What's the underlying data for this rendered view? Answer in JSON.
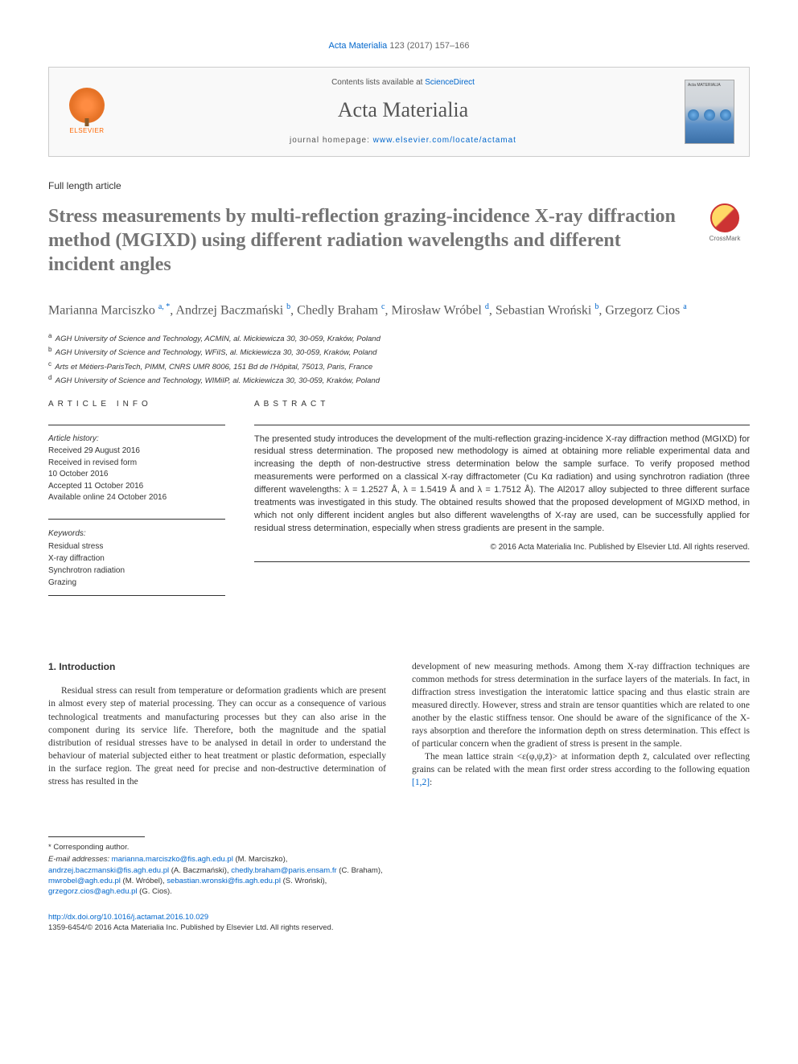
{
  "citation": {
    "journal_link": "Acta Materialia",
    "ref": " 123 (2017) 157–166"
  },
  "journal_box": {
    "elsevier_label": "ELSEVIER",
    "contents_prefix": "Contents lists available at ",
    "contents_link": "ScienceDirect",
    "journal_name": "Acta Materialia",
    "homepage_prefix": "journal homepage: ",
    "homepage_link": "www.elsevier.com/locate/actamat",
    "cover_text": "Acta MATERIALIA"
  },
  "article_type": "Full length article",
  "crossmark_label": "CrossMark",
  "title": "Stress measurements by multi-reflection grazing-incidence X-ray diffraction method (MGIXD) using different radiation wavelengths and different incident angles",
  "authors_html": "Marianna Marciszko <sup>a, *</sup>, Andrzej Baczmański <sup>b</sup>, Chedly Braham <sup>c</sup>, Mirosław Wróbel <sup>d</sup>, Sebastian Wroński <sup>b</sup>, Grzegorz Cios <sup>a</sup>",
  "affiliations": [
    {
      "sup": "a",
      "text": "AGH University of Science and Technology, ACMIN, al. Mickiewicza 30, 30-059, Kraków, Poland"
    },
    {
      "sup": "b",
      "text": "AGH University of Science and Technology, WFiIS, al. Mickiewicza 30, 30-059, Kraków, Poland"
    },
    {
      "sup": "c",
      "text": "Arts et Métiers-ParisTech, PIMM, CNRS UMR 8006, 151 Bd de l'Hôpital, 75013, Paris, France"
    },
    {
      "sup": "d",
      "text": "AGH University of Science and Technology, WIMiIP, al. Mickiewicza 30, 30-059, Kraków, Poland"
    }
  ],
  "info": {
    "label": "ARTICLE INFO",
    "history_label": "Article history:",
    "history": [
      "Received 29 August 2016",
      "Received in revised form",
      "10 October 2016",
      "Accepted 11 October 2016",
      "Available online 24 October 2016"
    ],
    "keywords_label": "Keywords:",
    "keywords": [
      "Residual stress",
      "X-ray diffraction",
      "Synchrotron radiation",
      "Grazing"
    ]
  },
  "abstract": {
    "label": "ABSTRACT",
    "text": "The presented study introduces the development of the multi-reflection grazing-incidence X-ray diffraction method (MGIXD) for residual stress determination. The proposed new methodology is aimed at obtaining more reliable experimental data and increasing the depth of non-destructive stress determination below the sample surface. To verify proposed method measurements were performed on a classical X-ray diffractometer (Cu Kα radiation) and using synchrotron radiation (three different wavelengths: λ = 1.2527 Å, λ = 1.5419 Å and λ = 1.7512 Å). The Al2017 alloy subjected to three different surface treatments was investigated in this study. The obtained results showed that the proposed development of MGIXD method, in which not only different incident angles but also different wavelengths of X-ray are used, can be successfully applied for residual stress determination, especially when stress gradients are present in the sample.",
    "copyright": "© 2016 Acta Materialia Inc. Published by Elsevier Ltd. All rights reserved."
  },
  "body": {
    "section_heading": "1. Introduction",
    "col1_para": "Residual stress can result from temperature or deformation gradients which are present in almost every step of material processing. They can occur as a consequence of various technological treatments and manufacturing processes but they can also arise in the component during its service life. Therefore, both the magnitude and the spatial distribution of residual stresses have to be analysed in detail in order to understand the behaviour of material subjected either to heat treatment or plastic deformation, especially in the surface region. The great need for precise and non-destructive determination of stress has resulted in the",
    "col2_para1": "development of new measuring methods. Among them X-ray diffraction techniques are common methods for stress determination in the surface layers of the materials. In fact, in diffraction stress investigation the interatomic lattice spacing and thus elastic strain are measured directly. However, stress and strain are tensor quantities which are related to one another by the elastic stiffness tensor. One should be aware of the significance of the X-rays absorption and therefore the information depth on stress determination. This effect is of particular concern when the gradient of stress is present in the sample.",
    "col2_para2_prefix": "The mean lattice strain <ε(φ,ψ,z̄)> at information depth z̄, calculated over reflecting grains can be related with the mean first order stress according to the following equation ",
    "col2_para2_ref": "[1,2]",
    "col2_para2_suffix": ":"
  },
  "footer": {
    "corr_label": "* Corresponding author.",
    "email_label": "E-mail addresses:",
    "emails": [
      {
        "addr": "marianna.marciszko@fis.agh.edu.pl",
        "name": "(M. Marciszko)"
      },
      {
        "addr": "andrzej.baczmanski@fis.agh.edu.pl",
        "name": "(A. Baczmański)"
      },
      {
        "addr": "chedly.braham@paris.ensam.fr",
        "name": "(C. Braham)"
      },
      {
        "addr": "mwrobel@agh.edu.pl",
        "name": "(M. Wróbel)"
      },
      {
        "addr": "sebastian.wronski@fis.agh.edu.pl",
        "name": "(S. Wroński)"
      },
      {
        "addr": "grzegorz.cios@agh.edu.pl",
        "name": "(G. Cios)"
      }
    ],
    "doi": "http://dx.doi.org/10.1016/j.actamat.2016.10.029",
    "issn": "1359-6454/© 2016 Acta Materialia Inc. Published by Elsevier Ltd. All rights reserved."
  }
}
